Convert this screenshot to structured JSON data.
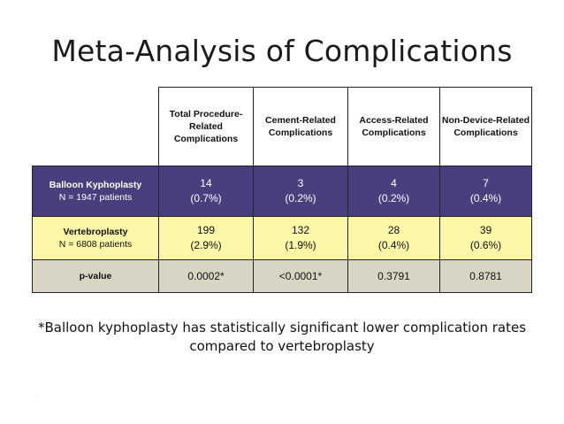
{
  "title": "Meta-Analysis of Complications",
  "table": {
    "columns": [
      "Total Procedure-Related Complications",
      "Cement-Related Complications",
      "Access-Related Complications",
      "Non-Device-Related Complications"
    ],
    "rows": [
      {
        "name": "Balloon Kyphoplasty",
        "sub": "N = 1947 patients",
        "cells": [
          {
            "count": "14",
            "pct": "(0.7%)"
          },
          {
            "count": "3",
            "pct": "(0.2%)"
          },
          {
            "count": "4",
            "pct": "(0.2%)"
          },
          {
            "count": "7",
            "pct": "(0.4%)"
          }
        ]
      },
      {
        "name": "Vertebroplasty",
        "sub": "N = 6808 patients",
        "cells": [
          {
            "count": "199",
            "pct": "(2.9%)"
          },
          {
            "count": "132",
            "pct": "(1.9%)"
          },
          {
            "count": "28",
            "pct": "(0.4%)"
          },
          {
            "count": "39",
            "pct": "(0.6%)"
          }
        ]
      },
      {
        "name": "p-value",
        "values": [
          "0.0002*",
          "<0.0001*",
          "0.3791",
          "0.8781"
        ]
      }
    ]
  },
  "footnote": "*Balloon kyphoplasty has statistically significant lower complication rates compared to vertebroplasty",
  "colors": {
    "kyphoplasty_row": "#4a3f7e",
    "vertebroplasty_row": "#fbf7a6",
    "pvalue_row": "#d9d5c5"
  }
}
